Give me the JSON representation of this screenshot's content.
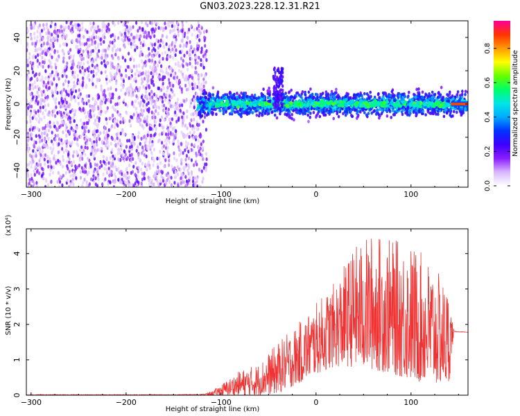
{
  "title": "GN03.2023.228.12.31.R21",
  "chart_data": [
    {
      "type": "heatmap",
      "xlabel": "Height of straight line (km)",
      "ylabel": "Frequency (Hz)",
      "xlim": [
        -305,
        160
      ],
      "ylim": [
        -50,
        50
      ],
      "xticks": [
        -300,
        -200,
        -100,
        0,
        100
      ],
      "yticks": [
        -40,
        -20,
        0,
        20,
        40
      ],
      "colorbar": {
        "label": "Normalized spectral amplitude",
        "range": [
          0.0,
          0.96
        ],
        "ticks": [
          0.0,
          0.2,
          0.4,
          0.6,
          0.8
        ],
        "colors": [
          "#ffffff",
          "#d8b6ff",
          "#8a1cff",
          "#3d00ff",
          "#0033ff",
          "#00aaff",
          "#00e6e6",
          "#00ff66",
          "#66ff00",
          "#ffff00",
          "#ff9900",
          "#ff3300",
          "#ff0099"
        ]
      },
      "regions": [
        {
          "name": "noise",
          "x_range": [
            -305,
            -115
          ],
          "y_range": [
            -50,
            50
          ],
          "amplitude": 0.15
        },
        {
          "name": "signal",
          "x_range": [
            -125,
            160
          ],
          "center_freq": 0,
          "half_width": 6,
          "amplitude": 0.35
        },
        {
          "name": "burst",
          "x_range": [
            -45,
            -35
          ],
          "freq_range": [
            -2,
            22
          ],
          "amplitude": 0.2
        },
        {
          "name": "tail",
          "x_range": [
            142,
            160
          ],
          "center_freq": 0,
          "half_width": 1.5,
          "amplitude": 0.9
        }
      ]
    },
    {
      "type": "line",
      "xlabel": "Height of straight line (km)",
      "ylabel": "SNR (10 * v/v)",
      "y_multiplier": "(x10⁴)",
      "xlim": [
        -305,
        160
      ],
      "ylim": [
        0,
        4.7
      ],
      "xticks": [
        -300,
        -200,
        -100,
        0,
        100
      ],
      "yticks": [
        0,
        1,
        2,
        3,
        4
      ],
      "color": "#f03232",
      "series": [
        {
          "x": [
            -305,
            -200,
            -150,
            -120,
            -110,
            -100,
            -90,
            -80,
            -60,
            -40,
            -20,
            0,
            20,
            40,
            60,
            80,
            100,
            120,
            140,
            145,
            160
          ],
          "y_low": [
            0,
            0,
            0,
            0,
            0,
            0,
            0,
            0,
            0,
            0.05,
            0.3,
            0.6,
            0.8,
            0.8,
            0.7,
            0.6,
            0.4,
            0.3,
            0.3,
            1.75,
            1.75
          ],
          "y_high": [
            0.02,
            0.02,
            0.02,
            0.03,
            0.1,
            0.3,
            0.5,
            0.7,
            0.9,
            1.5,
            2.0,
            2.6,
            3.2,
            4.2,
            4.6,
            4.4,
            4.3,
            3.8,
            3.0,
            1.85,
            1.8
          ]
        }
      ]
    }
  ]
}
